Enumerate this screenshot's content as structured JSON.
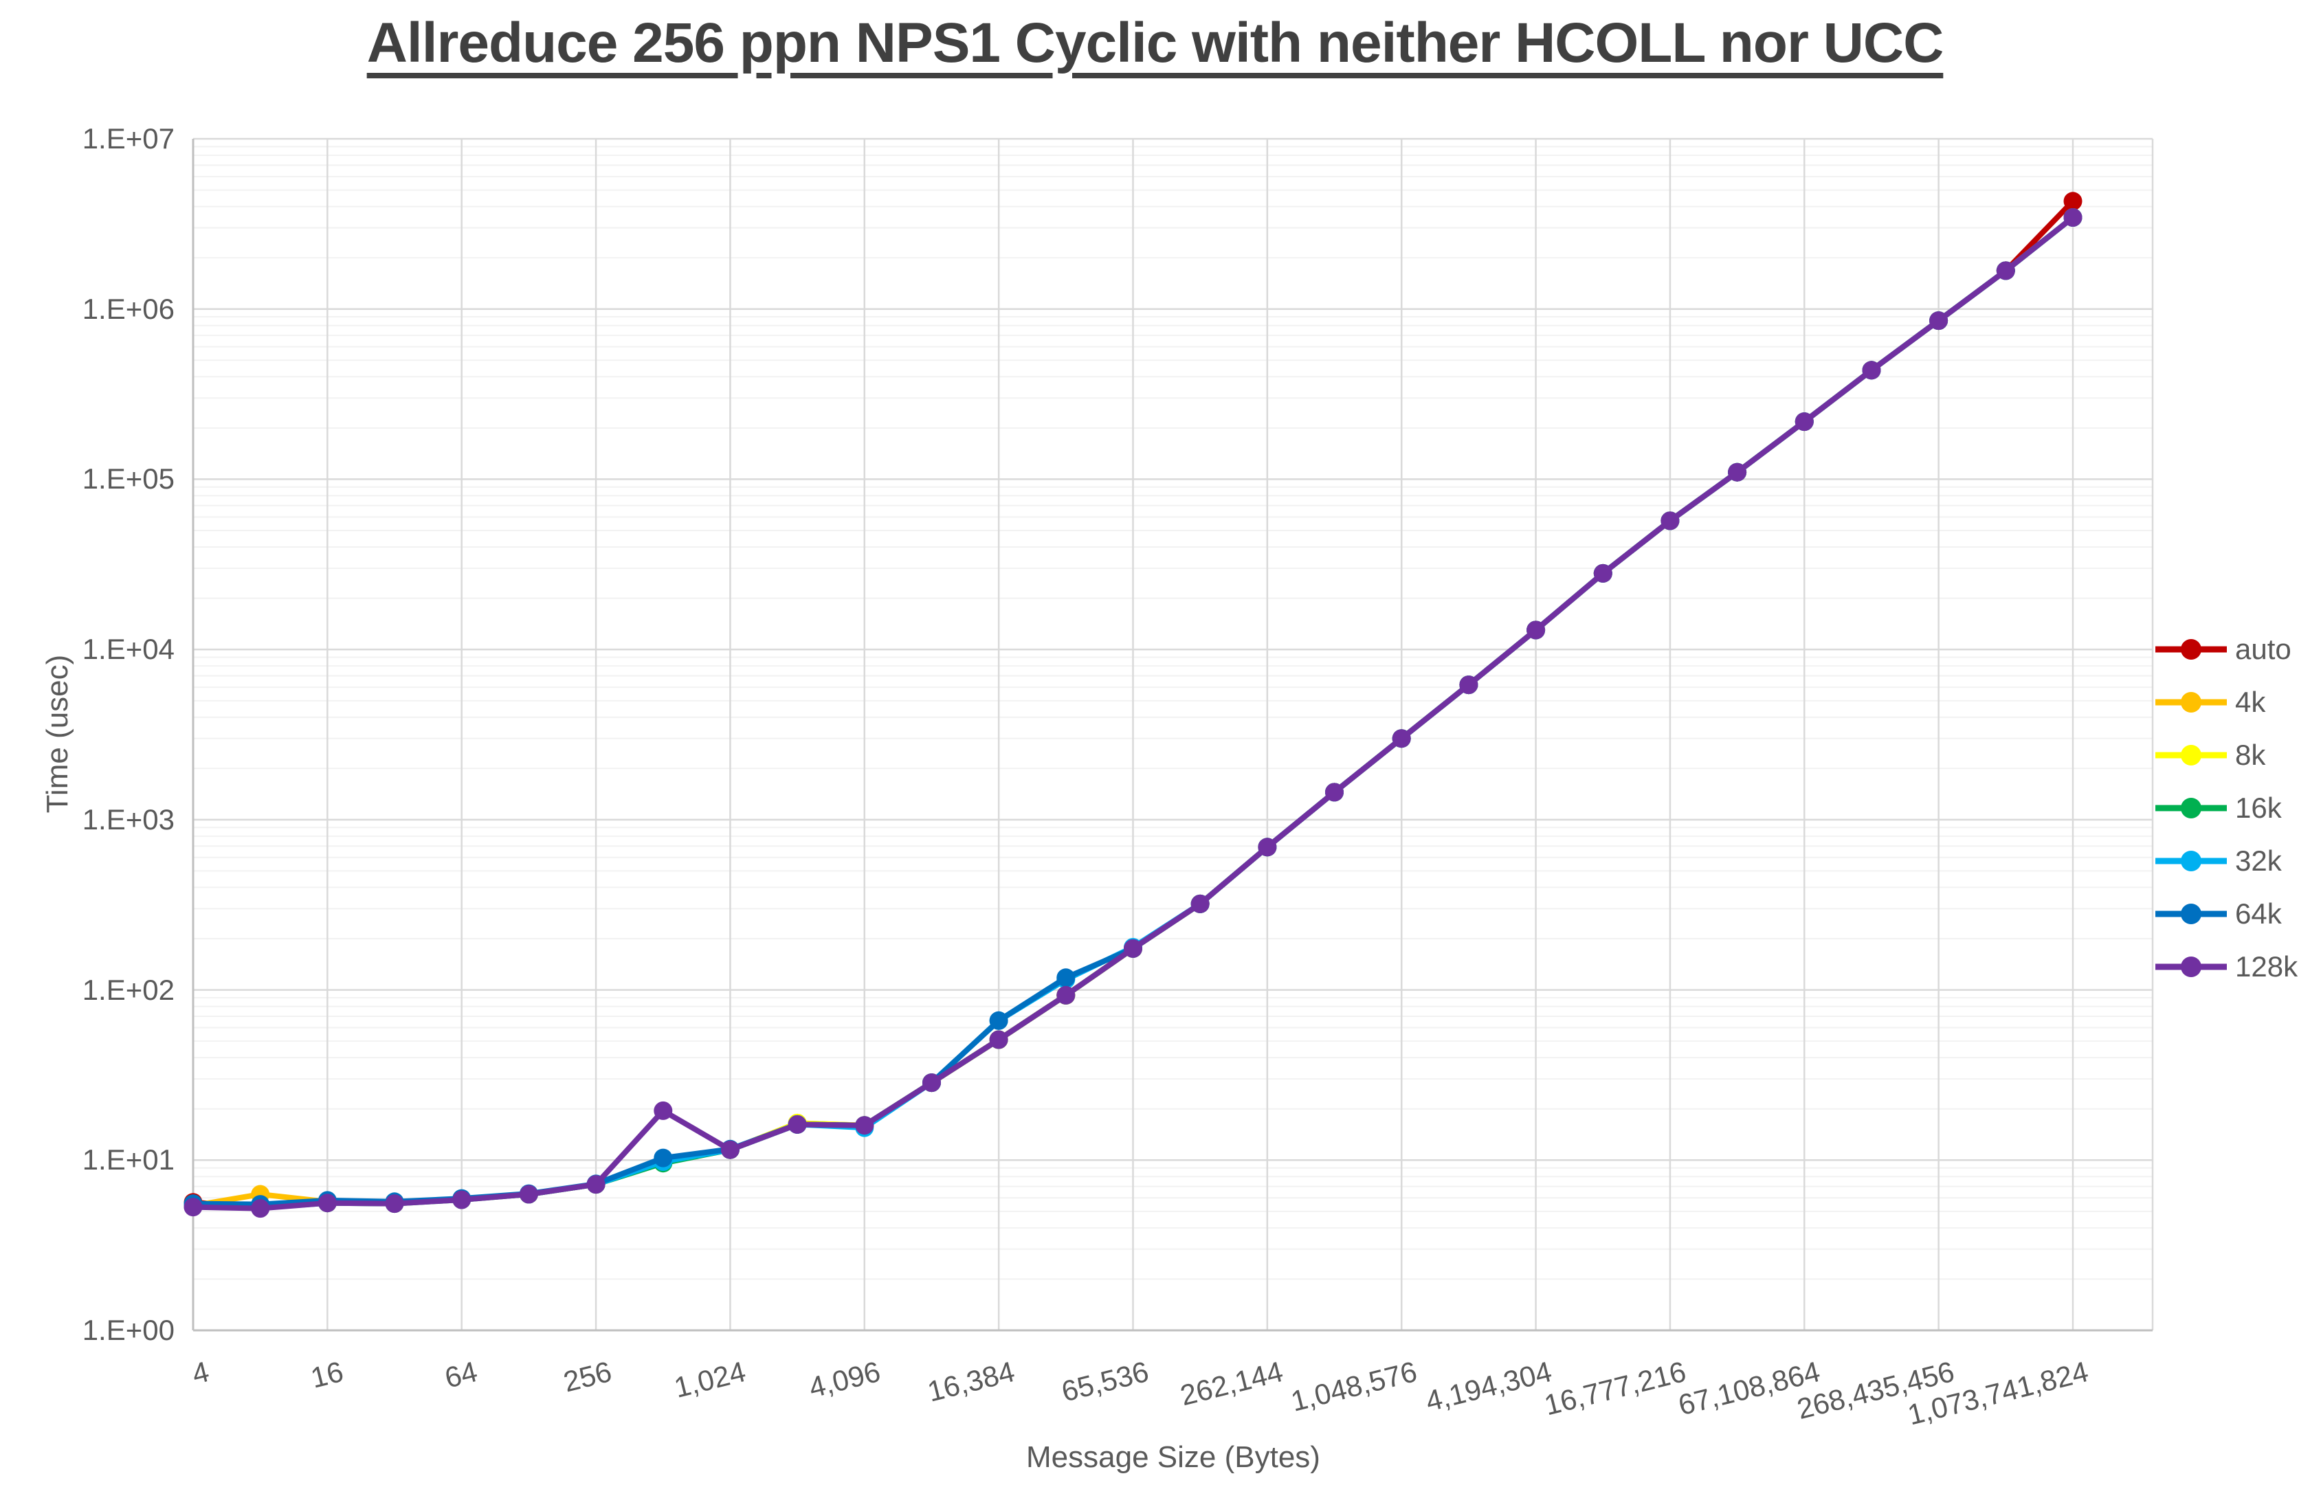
{
  "chart_data": {
    "type": "line",
    "title": "Allreduce 256 ppn NPS1 Cyclic with neither HCOLL nor UCC",
    "xlabel": "Message Size (Bytes)",
    "ylabel": "Time (usec)",
    "x_scale": "log2",
    "y_scale": "log10",
    "ylim": [
      1,
      10000000
    ],
    "grid": {
      "major_horizontal": true,
      "minor_horizontal": true,
      "major_vertical": true
    },
    "legend_position": "right",
    "y_tick_labels": [
      "1.E+00",
      "1.E+01",
      "1.E+02",
      "1.E+03",
      "1.E+04",
      "1.E+05",
      "1.E+06",
      "1.E+07"
    ],
    "x_tick_labels": [
      "4",
      "16",
      "64",
      "256",
      "1,024",
      "4,096",
      "16,384",
      "65,536",
      "262,144",
      "1,048,576",
      "4,194,304",
      "16,777,216",
      "67,108,864",
      "268,435,456",
      "1,073,741,824"
    ],
    "x": [
      4,
      8,
      16,
      32,
      64,
      128,
      256,
      512,
      1024,
      2048,
      4096,
      8192,
      16384,
      32768,
      65536,
      131072,
      262144,
      524288,
      1048576,
      2097152,
      4194304,
      8388608,
      16777216,
      33554432,
      67108864,
      134217728,
      268435456,
      536870912,
      1073741824
    ],
    "colors": {
      "major_gridline": "#D9D9D9",
      "minor_gridline": "#F2F2F2",
      "axis_line": "#BFBFBF",
      "tick_text": "#595959",
      "title_text": "#404040"
    },
    "series": [
      {
        "name": "auto",
        "color": "#C00000",
        "values": [
          5.65,
          5.3,
          5.7,
          5.6,
          5.9,
          6.3,
          7.2,
          9.9,
          11.5,
          16.2,
          16.0,
          28.5,
          51,
          93,
          175,
          320,
          690,
          1450,
          3000,
          6200,
          13000,
          28000,
          57000,
          110000,
          218000,
          437000,
          855000,
          1680000,
          4300000
        ]
      },
      {
        "name": "4k",
        "color": "#FFC000",
        "values": [
          5.4,
          6.3,
          5.7,
          5.6,
          5.9,
          6.3,
          7.2,
          9.9,
          11.5,
          16.5,
          16.0,
          28.5,
          51,
          93,
          175,
          320,
          690,
          1450,
          3000,
          6200,
          13000,
          28000,
          57000,
          110000,
          218000,
          437000,
          855000,
          1680000,
          3450000
        ]
      },
      {
        "name": "8k",
        "color": "#FFFF00",
        "values": [
          5.4,
          5.4,
          5.7,
          5.6,
          5.9,
          6.3,
          7.2,
          9.9,
          11.5,
          16.5,
          16.0,
          28.5,
          51,
          93,
          175,
          320,
          690,
          1450,
          3000,
          6200,
          13000,
          28000,
          57000,
          110000,
          218000,
          437000,
          855000,
          1680000,
          3450000
        ]
      },
      {
        "name": "16k",
        "color": "#00B050",
        "values": [
          5.35,
          5.25,
          5.6,
          5.55,
          5.85,
          6.3,
          7.2,
          9.6,
          11.5,
          16.2,
          16.0,
          28.5,
          51,
          93,
          175,
          320,
          690,
          1450,
          3000,
          6200,
          13000,
          28000,
          57000,
          110000,
          218000,
          437000,
          855000,
          1680000,
          3450000
        ]
      },
      {
        "name": "32k",
        "color": "#00B0F0",
        "values": [
          5.45,
          5.3,
          5.7,
          5.6,
          5.9,
          6.3,
          7.2,
          9.8,
          11.5,
          16.2,
          15.5,
          28.5,
          66,
          115,
          178,
          320,
          690,
          1450,
          3000,
          6200,
          13000,
          28000,
          57000,
          110000,
          218000,
          437000,
          855000,
          1680000,
          3450000
        ]
      },
      {
        "name": "64k",
        "color": "#0070C0",
        "values": [
          5.55,
          5.5,
          5.8,
          5.7,
          5.95,
          6.35,
          7.25,
          10.3,
          11.6,
          16.2,
          16.0,
          28.5,
          66,
          118,
          175,
          320,
          690,
          1450,
          3000,
          6200,
          13000,
          28000,
          57000,
          110000,
          218000,
          437000,
          855000,
          1680000,
          3450000
        ]
      },
      {
        "name": "128k",
        "color": "#7030A0",
        "values": [
          5.3,
          5.2,
          5.6,
          5.55,
          5.85,
          6.3,
          7.2,
          19.5,
          11.5,
          16.2,
          16.0,
          28.5,
          51,
          93,
          175,
          320,
          690,
          1450,
          3000,
          6200,
          13000,
          28000,
          57000,
          110000,
          218000,
          437000,
          855000,
          1680000,
          3450000
        ]
      }
    ]
  }
}
